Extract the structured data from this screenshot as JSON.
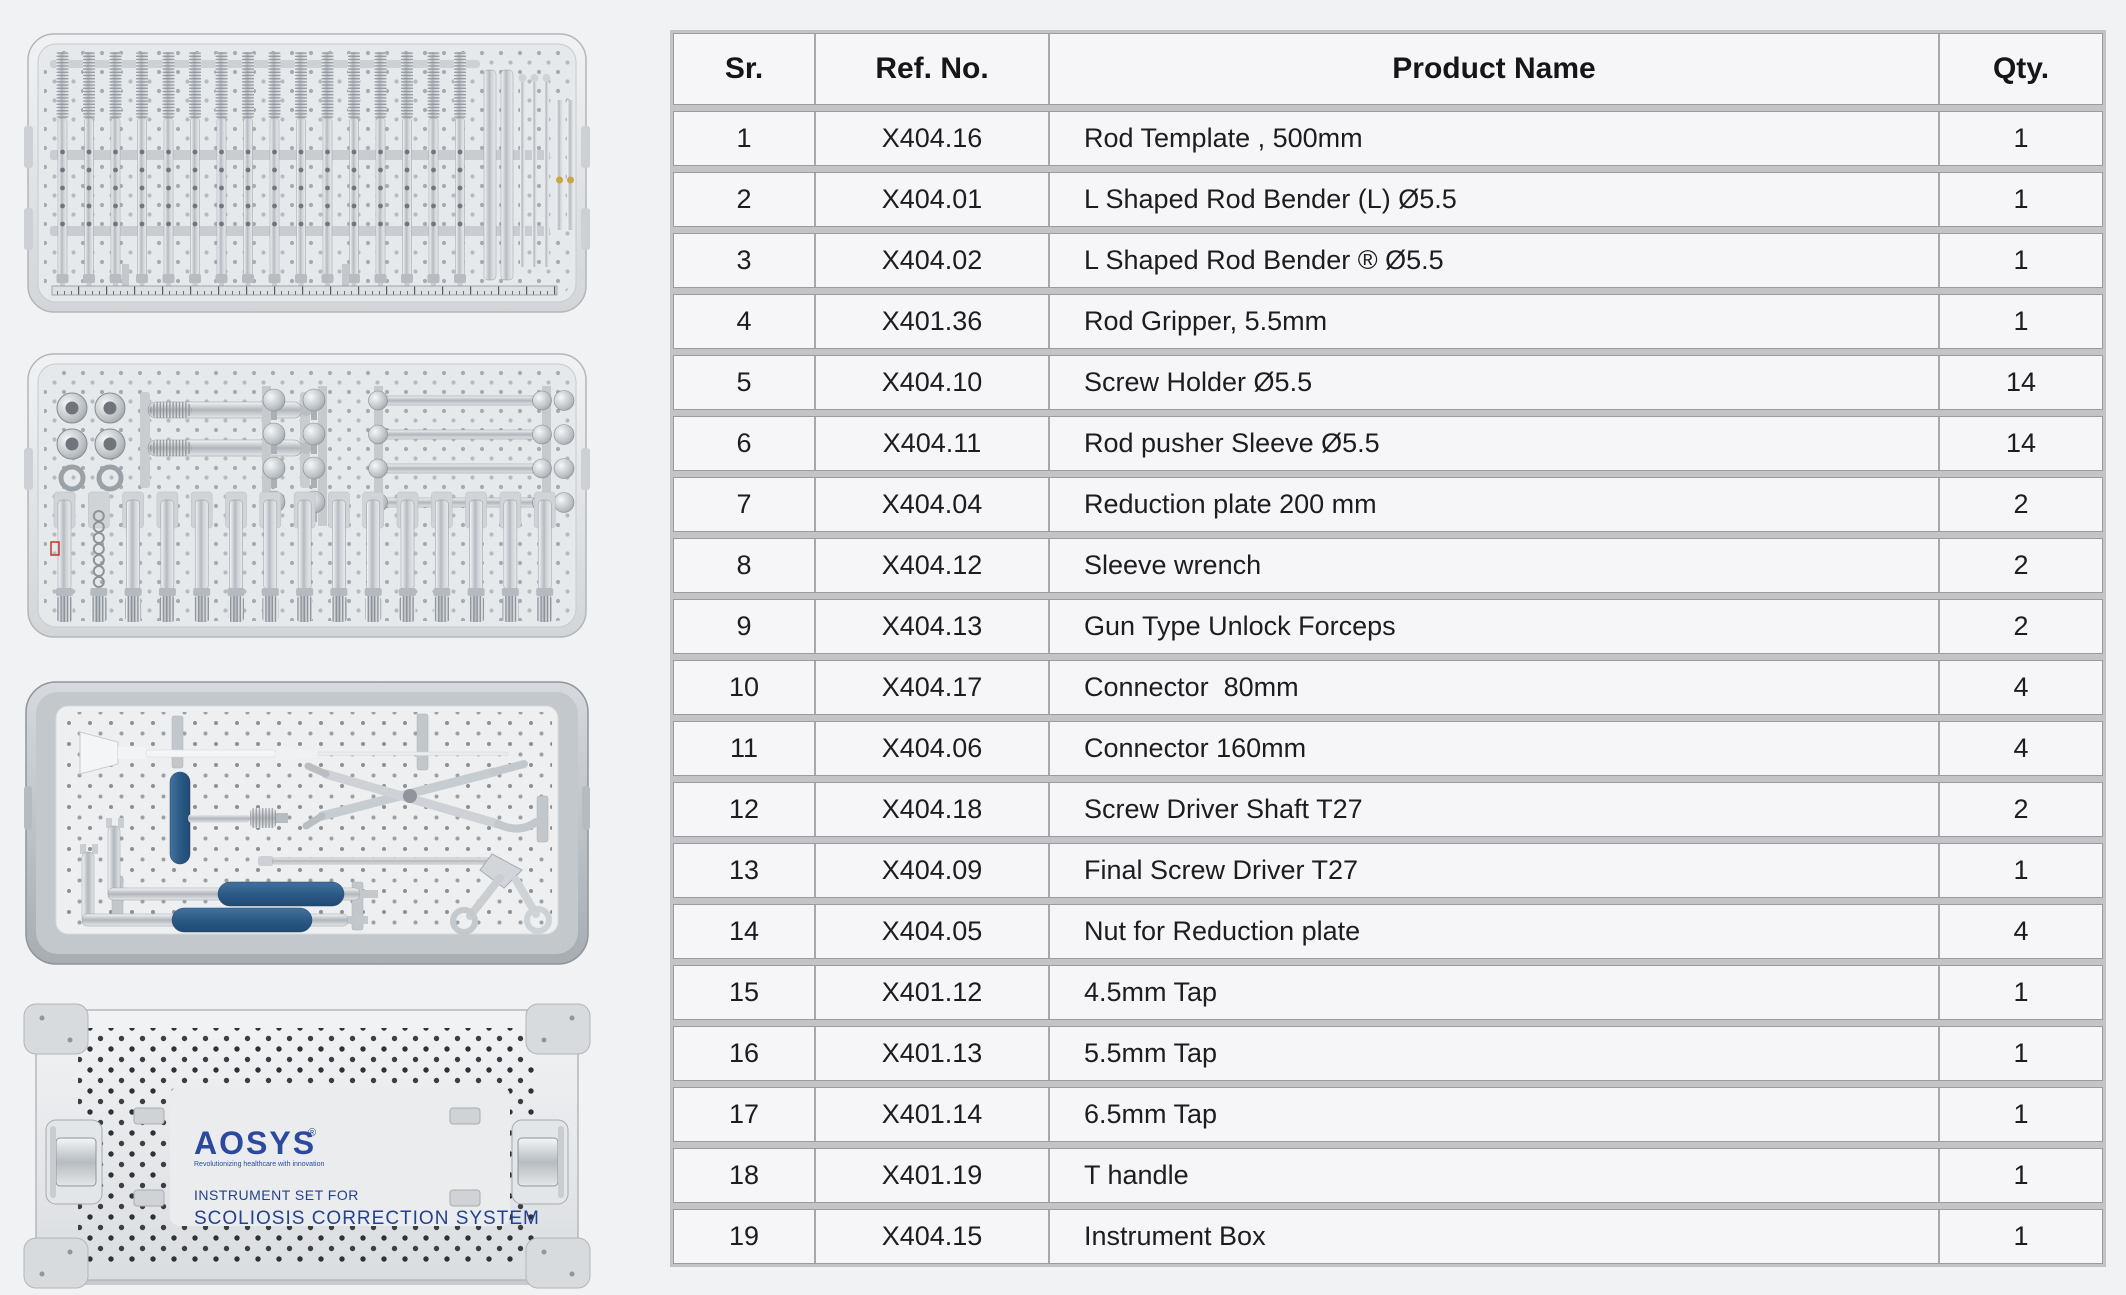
{
  "page": {
    "background": "#f1f2f4"
  },
  "photos": [
    {
      "alt": "Open sterilization tray with rows of rod pusher sleeves, screw holders and reduction plates"
    },
    {
      "alt": "Open sterilization tray with nuts, taps, connectors and knurled screw holders"
    },
    {
      "alt": "Deep sterilization tray with rod template, blue T handle, L shaped rod benders and gun type forceps"
    },
    {
      "alt": "Closed perforated aluminium instrument box with AOSYS label"
    }
  ],
  "box_label": {
    "brand": "AOSYS",
    "registered_mark": "®",
    "tagline": "Revolutionizing healthcare with innovation",
    "line1": "INSTRUMENT SET FOR",
    "line2": "SCOLIOSIS CORRECTION SYSTEM",
    "brand_color": "#2b4a9e"
  },
  "colors": {
    "handle_blue": "#2c5a86",
    "gold_accent": "#c9a545",
    "table_band": "#c4c4c8",
    "table_border": "#9c9ca0",
    "cell_background": "#f6f6f8"
  },
  "table": {
    "headers": [
      "Sr.",
      "Ref. No.",
      "Product Name",
      "Qty."
    ],
    "rows": [
      [
        "1",
        "X404.16",
        "Rod Template , 500mm",
        "1"
      ],
      [
        "2",
        "X404.01",
        "L Shaped Rod Bender (L) Ø5.5",
        "1"
      ],
      [
        "3",
        "X404.02",
        "L Shaped Rod Bender ® Ø5.5",
        "1"
      ],
      [
        "4",
        "X401.36",
        "Rod Gripper, 5.5mm",
        "1"
      ],
      [
        "5",
        "X404.10",
        "Screw Holder Ø5.5",
        "14"
      ],
      [
        "6",
        "X404.11",
        "Rod pusher Sleeve Ø5.5",
        "14"
      ],
      [
        "7",
        "X404.04",
        "Reduction plate 200 mm",
        "2"
      ],
      [
        "8",
        "X404.12",
        "Sleeve wrench",
        "2"
      ],
      [
        "9",
        "X404.13",
        "Gun Type Unlock Forceps",
        "2"
      ],
      [
        "10",
        "X404.17",
        "Connector  80mm",
        "4"
      ],
      [
        "11",
        "X404.06",
        "Connector 160mm",
        "4"
      ],
      [
        "12",
        "X404.18",
        "Screw Driver Shaft T27",
        "2"
      ],
      [
        "13",
        "X404.09",
        "Final Screw Driver T27",
        "1"
      ],
      [
        "14",
        "X404.05",
        "Nut for Reduction plate",
        "4"
      ],
      [
        "15",
        "X401.12",
        "4.5mm Tap",
        "1"
      ],
      [
        "16",
        "X401.13",
        "5.5mm Tap",
        "1"
      ],
      [
        "17",
        "X401.14",
        "6.5mm Tap",
        "1"
      ],
      [
        "18",
        "X401.19",
        "T handle",
        "1"
      ],
      [
        "19",
        "X404.15",
        "Instrument Box",
        "1"
      ]
    ]
  }
}
